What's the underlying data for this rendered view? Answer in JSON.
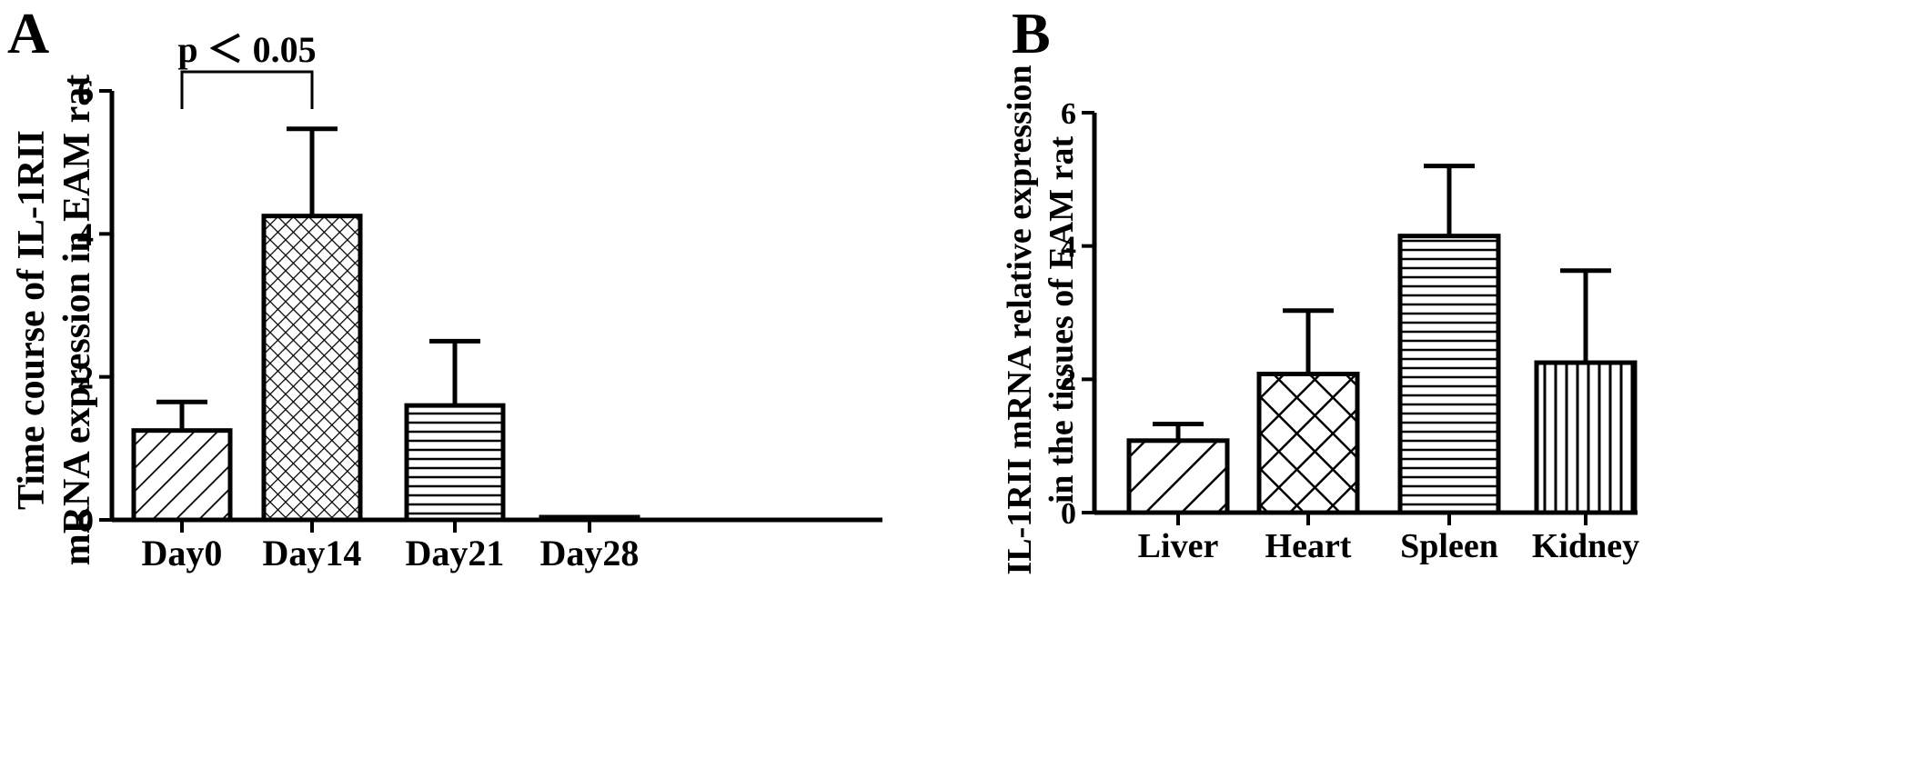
{
  "chart_data": [
    {
      "panel_label": "A",
      "type": "bar",
      "ylabel_line1": "Time course of IL-1RII",
      "ylabel_line2": "mRNA expression in EAM rat",
      "xlabel": "",
      "ylim": [
        0,
        6
      ],
      "yticks": [
        0,
        2,
        4,
        6
      ],
      "categories": [
        "Day0",
        "Day14",
        "Day21",
        "Day28"
      ],
      "values": [
        1.25,
        4.25,
        1.6,
        0.02
      ],
      "errors": [
        0.4,
        1.22,
        0.9,
        0
      ],
      "patterns": [
        "diagonal-down",
        "crosshatch-fine",
        "horizontal",
        "none"
      ],
      "annotation": {
        "text": "p ＜ 0.05",
        "from": "Day0",
        "to": "Day14"
      },
      "grid": false,
      "legend": "none"
    },
    {
      "panel_label": "B",
      "type": "bar",
      "ylabel_line1": "IL-1RII mRNA relative expression",
      "ylabel_line2": "in the tissues of EAM rat",
      "xlabel": "",
      "ylim": [
        0,
        6
      ],
      "yticks": [
        0,
        2,
        4,
        6
      ],
      "categories": [
        "Liver",
        "Heart",
        "Spleen",
        "Kidney"
      ],
      "values": [
        1.08,
        2.08,
        4.15,
        2.25
      ],
      "errors": [
        0.25,
        0.95,
        1.05,
        1.38
      ],
      "patterns": [
        "diagonal-down-wide",
        "crosshatch-wide",
        "horizontal",
        "vertical"
      ],
      "grid": false,
      "legend": "none"
    }
  ]
}
